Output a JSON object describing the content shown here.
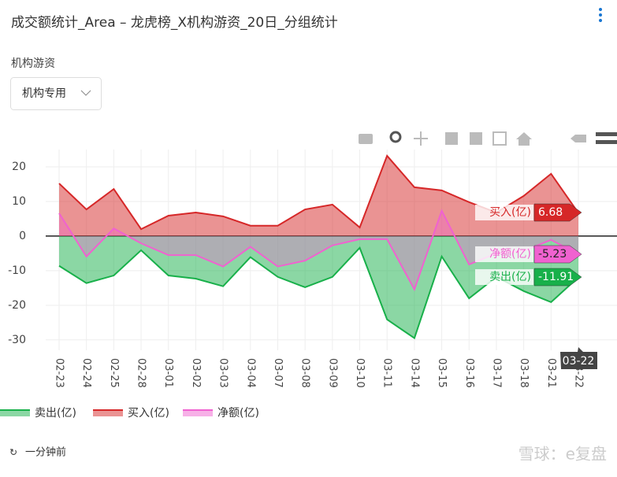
{
  "page": {
    "title": "成交额统计_Area – 龙虎榜_X机构游资_20日_分组统计",
    "filter_label": "机构游资",
    "filter_value": "机构专用",
    "updated": "一分钟前",
    "watermark": "雪球：e复盘"
  },
  "chart_data": {
    "type": "area",
    "categories": [
      "02-23",
      "02-24",
      "02-25",
      "02-28",
      "03-01",
      "03-02",
      "03-03",
      "03-04",
      "03-07",
      "03-08",
      "03-09",
      "03-10",
      "03-11",
      "03-14",
      "03-15",
      "03-16",
      "03-17",
      "03-18",
      "03-21",
      "03-22"
    ],
    "series": [
      {
        "name": "卖出(亿)",
        "color": "#18b04a",
        "values": [
          -8.6,
          -13.6,
          -11.4,
          -4.1,
          -11.4,
          -12.3,
          -14.5,
          -6.1,
          -11.8,
          -14.8,
          -11.8,
          -3.4,
          -24.1,
          -29.5,
          -5.9,
          -18,
          -11.8,
          -15.9,
          -19.1,
          -11.91
        ]
      },
      {
        "name": "买入(亿)",
        "color": "#d62728",
        "values": [
          15.2,
          7.7,
          13.6,
          2,
          5.9,
          6.8,
          5.7,
          3,
          3,
          7.7,
          9.1,
          2.5,
          23.2,
          14.1,
          13.2,
          9.8,
          6.8,
          11.6,
          18,
          6.68
        ]
      },
      {
        "name": "净额(亿)",
        "color": "#f062d0",
        "values": [
          6.6,
          -5.9,
          2.2,
          -2.1,
          -5.5,
          -5.5,
          -8.8,
          -3.1,
          -8.8,
          -7.1,
          -2.7,
          -0.9,
          -0.9,
          -15.4,
          7.3,
          -8.2,
          -5,
          -4.3,
          -1.1,
          -5.23
        ]
      }
    ],
    "ylim": [
      -33,
      25
    ],
    "yticks": [
      -30,
      -20,
      -10,
      0,
      10,
      20
    ],
    "grid": true
  }
}
